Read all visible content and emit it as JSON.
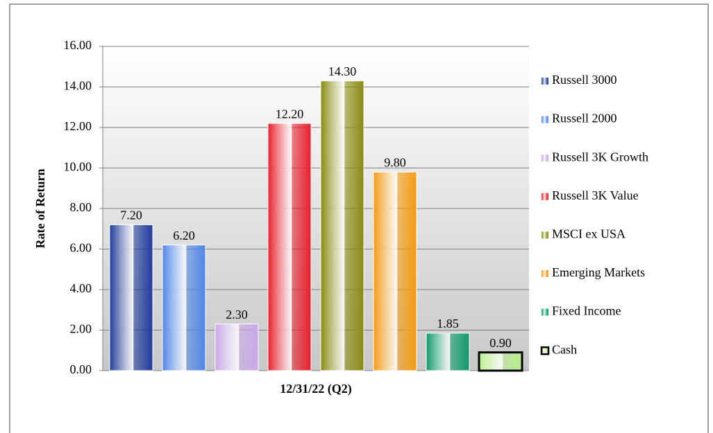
{
  "chart_data": {
    "type": "bar",
    "categories": [
      "12/31/22 (Q2)"
    ],
    "ylabel": "Rate of Return",
    "ylim": [
      0,
      16
    ],
    "yticks": [
      {
        "value": 0,
        "label": "0.00"
      },
      {
        "value": 2,
        "label": "2.00"
      },
      {
        "value": 4,
        "label": "4.00"
      },
      {
        "value": 6,
        "label": "6.00"
      },
      {
        "value": 8,
        "label": "8.00"
      },
      {
        "value": 10,
        "label": "10.00"
      },
      {
        "value": 12,
        "label": "12.00"
      },
      {
        "value": 14,
        "label": "14.00"
      },
      {
        "value": 16,
        "label": "16.00"
      }
    ],
    "grid": true,
    "legend": "right",
    "series": [
      {
        "name": "Russell 3000",
        "color": "#1f3a9c",
        "values": [
          7.2
        ],
        "value_labels": [
          "7.20"
        ]
      },
      {
        "name": "Russell 2000",
        "color": "#4f86e8",
        "values": [
          6.2
        ],
        "value_labels": [
          "6.20"
        ]
      },
      {
        "name": "Russell 3K Growth",
        "color": "#c9a8e8",
        "values": [
          2.3
        ],
        "value_labels": [
          "2.30"
        ]
      },
      {
        "name": "Russell 3K Value",
        "color": "#e8202a",
        "values": [
          12.2
        ],
        "value_labels": [
          "12.20"
        ]
      },
      {
        "name": "MSCI ex USA",
        "color": "#8a8a10",
        "values": [
          14.3
        ],
        "value_labels": [
          "14.30"
        ]
      },
      {
        "name": "Emerging Markets",
        "color": "#f59a10",
        "values": [
          9.8
        ],
        "value_labels": [
          "9.80"
        ]
      },
      {
        "name": "Fixed Income",
        "color": "#0e9a6a",
        "values": [
          1.85
        ],
        "value_labels": [
          "1.85"
        ]
      },
      {
        "name": "Cash",
        "color": "#b8f08a",
        "edgecolor": "#000000",
        "values": [
          0.9
        ],
        "value_labels": [
          "0.90"
        ]
      }
    ]
  }
}
